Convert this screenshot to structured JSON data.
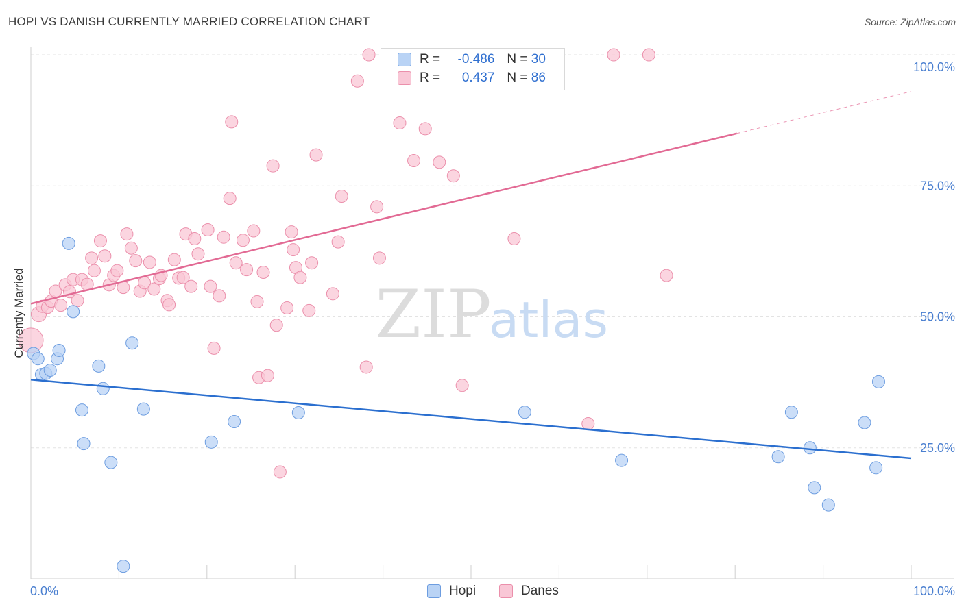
{
  "header": {
    "title": "HOPI VS DANISH CURRENTLY MARRIED CORRELATION CHART",
    "source": "Source: ZipAtlas.com"
  },
  "legend": {
    "hopi": {
      "r_label": "R =",
      "r_value": "-0.486",
      "n_label": "N =",
      "n_value": "30"
    },
    "danes": {
      "r_label": "R =",
      "r_value": "0.437",
      "n_label": "N =",
      "n_value": "86"
    }
  },
  "bottom_legend": {
    "hopi": "Hopi",
    "danes": "Danes"
  },
  "watermark": {
    "zip": "ZIP",
    "atlas": "atlas"
  },
  "colors": {
    "hopi_fill": "#b9d3f5",
    "hopi_stroke": "#6d9de0",
    "hopi_line": "#2b6fcf",
    "danes_fill": "#f9c7d6",
    "danes_stroke": "#eb8fab",
    "danes_line": "#e26a94",
    "tick_label": "#4a7fd0",
    "grid": "#e3e3e3"
  },
  "chart_data": {
    "type": "scatter",
    "title": "HOPI VS DANISH CURRENTLY MARRIED CORRELATION CHART",
    "xlabel": "",
    "ylabel": "Currently Married",
    "xlim": [
      0,
      100
    ],
    "ylim": [
      0,
      100
    ],
    "x_tick_labels": [
      "0.0%",
      "100.0%"
    ],
    "y_ticks": [
      25,
      50,
      75,
      100
    ],
    "y_tick_labels": [
      "25.0%",
      "50.0%",
      "75.0%",
      "100.0%"
    ],
    "grid": true,
    "legend_position": "top-center",
    "series": [
      {
        "name": "Hopi",
        "r": -0.486,
        "n": 30,
        "trend": {
          "x0": 0,
          "y0": 38.0,
          "x1": 100,
          "y1": 23.0
        },
        "points": [
          [
            0.3,
            43.0
          ],
          [
            0.8,
            42.0
          ],
          [
            1.2,
            39.0
          ],
          [
            1.7,
            39.2
          ],
          [
            2.2,
            39.8
          ],
          [
            3.0,
            42.0
          ],
          [
            3.2,
            43.6
          ],
          [
            4.3,
            64.0
          ],
          [
            4.8,
            51.0
          ],
          [
            5.8,
            32.2
          ],
          [
            6.0,
            25.8
          ],
          [
            7.7,
            40.6
          ],
          [
            8.2,
            36.3
          ],
          [
            9.1,
            22.2
          ],
          [
            10.5,
            2.4
          ],
          [
            11.5,
            45.0
          ],
          [
            12.8,
            32.4
          ],
          [
            20.5,
            26.1
          ],
          [
            23.1,
            30.0
          ],
          [
            30.4,
            31.7
          ],
          [
            56.1,
            31.8
          ],
          [
            67.1,
            22.6
          ],
          [
            84.9,
            23.3
          ],
          [
            86.4,
            31.8
          ],
          [
            88.5,
            25.0
          ],
          [
            89.0,
            17.4
          ],
          [
            90.6,
            14.1
          ],
          [
            94.7,
            29.8
          ],
          [
            96.0,
            21.2
          ],
          [
            96.3,
            37.6
          ]
        ]
      },
      {
        "name": "Danes",
        "r": 0.437,
        "n": 86,
        "trend": {
          "x0": 0,
          "y0": 52.5,
          "x1": 80.2,
          "y1": 85.0,
          "dash_to_x": 100,
          "dash_to_y": 93.0
        },
        "points": [
          [
            0.0,
            45.5
          ],
          [
            0.9,
            50.5
          ],
          [
            1.3,
            52.0
          ],
          [
            1.9,
            51.8
          ],
          [
            2.3,
            53.0
          ],
          [
            2.8,
            54.9
          ],
          [
            3.4,
            52.2
          ],
          [
            3.9,
            56.1
          ],
          [
            4.4,
            54.8
          ],
          [
            4.8,
            57.1
          ],
          [
            5.3,
            53.1
          ],
          [
            5.8,
            57.1
          ],
          [
            6.4,
            56.2
          ],
          [
            6.9,
            61.2
          ],
          [
            7.2,
            58.8
          ],
          [
            7.9,
            64.5
          ],
          [
            8.4,
            61.6
          ],
          [
            8.9,
            56.1
          ],
          [
            9.4,
            57.9
          ],
          [
            9.8,
            58.8
          ],
          [
            10.5,
            55.6
          ],
          [
            10.9,
            65.8
          ],
          [
            11.4,
            63.1
          ],
          [
            11.9,
            60.7
          ],
          [
            12.4,
            54.9
          ],
          [
            12.9,
            56.5
          ],
          [
            13.5,
            60.4
          ],
          [
            14.0,
            55.3
          ],
          [
            14.6,
            57.3
          ],
          [
            14.8,
            57.9
          ],
          [
            15.5,
            53.1
          ],
          [
            15.7,
            52.3
          ],
          [
            16.3,
            60.9
          ],
          [
            16.8,
            57.4
          ],
          [
            17.3,
            57.5
          ],
          [
            17.6,
            65.8
          ],
          [
            18.2,
            55.8
          ],
          [
            18.6,
            64.9
          ],
          [
            19.0,
            62.0
          ],
          [
            20.1,
            66.6
          ],
          [
            20.4,
            55.8
          ],
          [
            20.8,
            44.0
          ],
          [
            21.4,
            54.0
          ],
          [
            21.9,
            65.2
          ],
          [
            22.6,
            72.6
          ],
          [
            22.8,
            87.2
          ],
          [
            23.3,
            60.3
          ],
          [
            24.1,
            64.6
          ],
          [
            24.5,
            59.0
          ],
          [
            25.3,
            66.4
          ],
          [
            25.7,
            52.9
          ],
          [
            25.9,
            38.4
          ],
          [
            26.4,
            58.5
          ],
          [
            26.9,
            38.8
          ],
          [
            27.5,
            78.8
          ],
          [
            27.9,
            48.4
          ],
          [
            28.3,
            20.4
          ],
          [
            29.1,
            51.7
          ],
          [
            29.6,
            66.2
          ],
          [
            30.1,
            59.4
          ],
          [
            30.6,
            57.5
          ],
          [
            31.6,
            51.2
          ],
          [
            31.9,
            60.3
          ],
          [
            32.4,
            80.9
          ],
          [
            34.3,
            54.4
          ],
          [
            34.9,
            64.3
          ],
          [
            35.3,
            73.0
          ],
          [
            37.1,
            95.0
          ],
          [
            38.1,
            40.4
          ],
          [
            38.4,
            100.0
          ],
          [
            39.3,
            71.0
          ],
          [
            39.6,
            61.2
          ],
          [
            41.9,
            87.0
          ],
          [
            43.5,
            79.8
          ],
          [
            44.8,
            85.9
          ],
          [
            46.4,
            79.5
          ],
          [
            48.0,
            76.9
          ],
          [
            49.0,
            36.9
          ],
          [
            52.2,
            100.0
          ],
          [
            54.0,
            100.0
          ],
          [
            54.9,
            64.9
          ],
          [
            63.3,
            29.6
          ],
          [
            66.2,
            100.0
          ],
          [
            70.2,
            100.0
          ],
          [
            72.2,
            57.9
          ],
          [
            29.8,
            62.8
          ]
        ]
      }
    ]
  }
}
